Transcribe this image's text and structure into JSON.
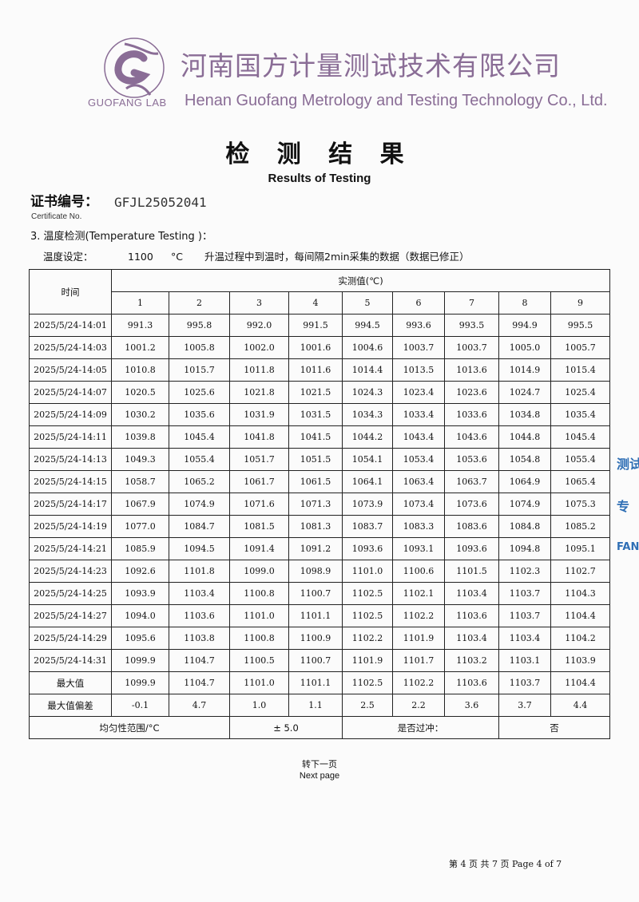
{
  "header": {
    "company_cn": "河南国方计量测试技术有限公司",
    "lab": "GUOFANG LAB",
    "company_en": "Henan Guofang Metrology and Testing Technology Co., Ltd.",
    "logo_color": "#8a6d96"
  },
  "title": {
    "cn": "检 测 结 果",
    "en": "Results of  Testing"
  },
  "certificate": {
    "label": "证书编号：",
    "value": "GFJL25052041",
    "label_en": "Certificate No."
  },
  "section": "3. 温度检测(Temperature Testing )：",
  "setting": {
    "label": "温度设定：",
    "value": "1100",
    "unit": "°C",
    "note": "升温过程中到温时，每间隔2min采集的数据（数据已修正）"
  },
  "table": {
    "time_header": "时间",
    "measured_header": "实测值(℃)",
    "columns": [
      "1",
      "2",
      "3",
      "4",
      "5",
      "6",
      "7",
      "8",
      "9"
    ],
    "rows": [
      [
        "2025/5/24-14:01",
        "991.3",
        "995.8",
        "992.0",
        "991.5",
        "994.5",
        "993.6",
        "993.5",
        "994.9",
        "995.5"
      ],
      [
        "2025/5/24-14:03",
        "1001.2",
        "1005.8",
        "1002.0",
        "1001.6",
        "1004.6",
        "1003.7",
        "1003.7",
        "1005.0",
        "1005.7"
      ],
      [
        "2025/5/24-14:05",
        "1010.8",
        "1015.7",
        "1011.8",
        "1011.6",
        "1014.4",
        "1013.5",
        "1013.6",
        "1014.9",
        "1015.4"
      ],
      [
        "2025/5/24-14:07",
        "1020.5",
        "1025.6",
        "1021.8",
        "1021.5",
        "1024.3",
        "1023.4",
        "1023.6",
        "1024.7",
        "1025.4"
      ],
      [
        "2025/5/24-14:09",
        "1030.2",
        "1035.6",
        "1031.9",
        "1031.5",
        "1034.3",
        "1033.4",
        "1033.6",
        "1034.8",
        "1035.4"
      ],
      [
        "2025/5/24-14:11",
        "1039.8",
        "1045.4",
        "1041.8",
        "1041.5",
        "1044.2",
        "1043.4",
        "1043.6",
        "1044.8",
        "1045.4"
      ],
      [
        "2025/5/24-14:13",
        "1049.3",
        "1055.4",
        "1051.7",
        "1051.5",
        "1054.1",
        "1053.4",
        "1053.6",
        "1054.8",
        "1055.4"
      ],
      [
        "2025/5/24-14:15",
        "1058.7",
        "1065.2",
        "1061.7",
        "1061.5",
        "1064.1",
        "1063.4",
        "1063.7",
        "1064.9",
        "1065.4"
      ],
      [
        "2025/5/24-14:17",
        "1067.9",
        "1074.9",
        "1071.6",
        "1071.3",
        "1073.9",
        "1073.4",
        "1073.6",
        "1074.9",
        "1075.3"
      ],
      [
        "2025/5/24-14:19",
        "1077.0",
        "1084.7",
        "1081.5",
        "1081.3",
        "1083.7",
        "1083.3",
        "1083.6",
        "1084.8",
        "1085.2"
      ],
      [
        "2025/5/24-14:21",
        "1085.9",
        "1094.5",
        "1091.4",
        "1091.2",
        "1093.6",
        "1093.1",
        "1093.6",
        "1094.8",
        "1095.1"
      ],
      [
        "2025/5/24-14:23",
        "1092.6",
        "1101.8",
        "1099.0",
        "1098.9",
        "1101.0",
        "1100.6",
        "1101.5",
        "1102.3",
        "1102.7"
      ],
      [
        "2025/5/24-14:25",
        "1093.9",
        "1103.4",
        "1100.8",
        "1100.7",
        "1102.5",
        "1102.1",
        "1103.4",
        "1103.7",
        "1104.3"
      ],
      [
        "2025/5/24-14:27",
        "1094.0",
        "1103.6",
        "1101.0",
        "1101.1",
        "1102.5",
        "1102.2",
        "1103.6",
        "1103.7",
        "1104.4"
      ],
      [
        "2025/5/24-14:29",
        "1095.6",
        "1103.8",
        "1100.8",
        "1100.9",
        "1102.2",
        "1101.9",
        "1103.4",
        "1103.4",
        "1104.2"
      ],
      [
        "2025/5/24-14:31",
        "1099.9",
        "1104.7",
        "1100.5",
        "1100.7",
        "1101.9",
        "1101.7",
        "1103.2",
        "1103.1",
        "1103.9"
      ],
      [
        "最大值",
        "1099.9",
        "1104.7",
        "1101.0",
        "1101.1",
        "1102.5",
        "1102.2",
        "1103.6",
        "1103.7",
        "1104.4"
      ],
      [
        "最大值偏差",
        "-0.1",
        "4.7",
        "1.0",
        "1.1",
        "2.5",
        "2.2",
        "3.6",
        "3.7",
        "4.4"
      ]
    ],
    "footer": {
      "uniformity_label": "均匀性范围/°C",
      "uniformity_value": "± 5.0",
      "overshoot_label": "是否过冲：",
      "overshoot_value": "否"
    }
  },
  "next_page": {
    "cn": "转下一页",
    "en": "Next page"
  },
  "page_number": "第 4 页 共 7 页 Page 4 of 7",
  "stamp": {
    "fragments": [
      "测试",
      "专",
      "FAN"
    ],
    "color": "#2f6fb5"
  }
}
